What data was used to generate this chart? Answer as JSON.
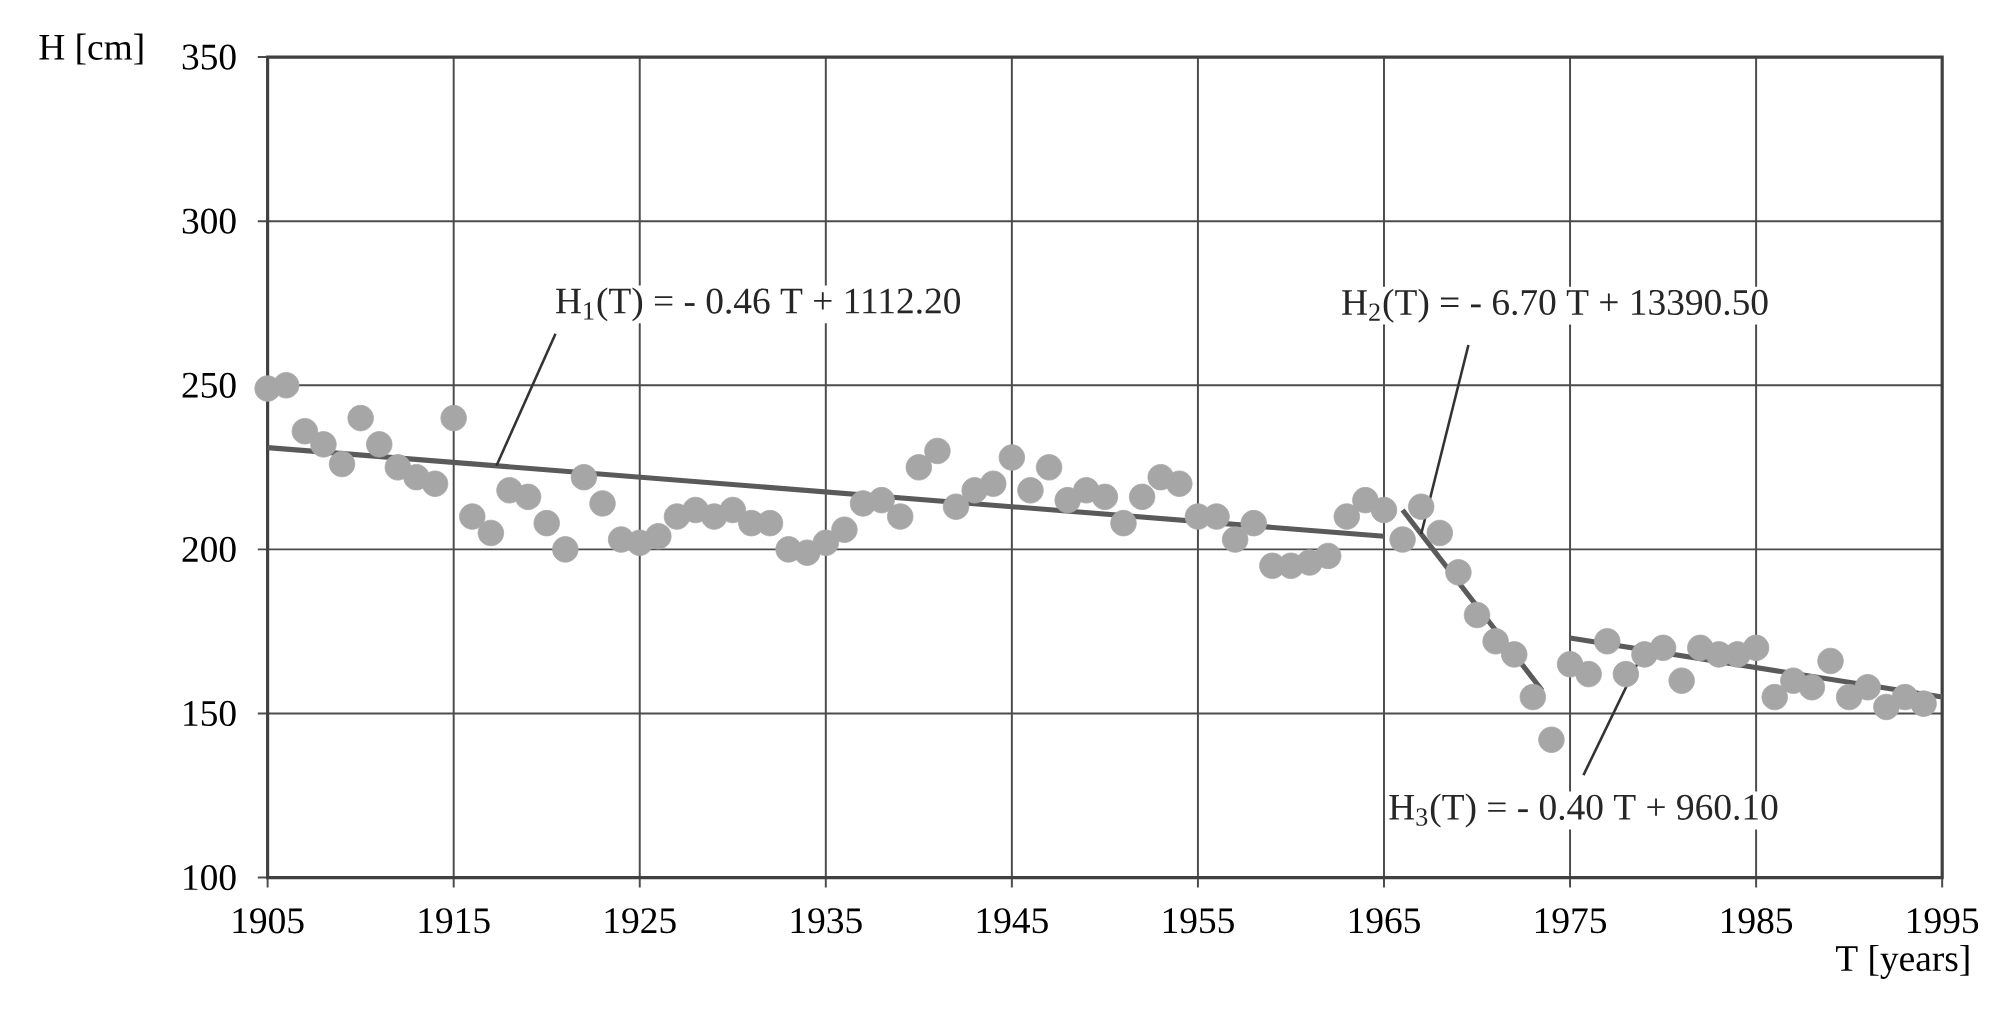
{
  "chart_data": {
    "type": "scatter",
    "xlabel": "T [years]",
    "ylabel": "H [cm]",
    "xlim": [
      1905,
      1995
    ],
    "xticks": [
      1905,
      1915,
      1925,
      1935,
      1945,
      1955,
      1965,
      1975,
      1985,
      1995
    ],
    "ylim": [
      100,
      350
    ],
    "yticks": [
      100,
      150,
      200,
      250,
      300,
      350
    ],
    "grid": true,
    "series": [
      {
        "marker": "circle",
        "color": "#a6a6a6",
        "x": [
          1905,
          1906,
          1907,
          1908,
          1909,
          1910,
          1911,
          1912,
          1913,
          1914,
          1915,
          1916,
          1917,
          1918,
          1919,
          1920,
          1921,
          1922,
          1923,
          1924,
          1925,
          1926,
          1927,
          1928,
          1929,
          1930,
          1931,
          1932,
          1933,
          1934,
          1935,
          1936,
          1937,
          1938,
          1939,
          1940,
          1941,
          1942,
          1943,
          1944,
          1945,
          1946,
          1947,
          1948,
          1949,
          1950,
          1951,
          1952,
          1953,
          1954,
          1955,
          1956,
          1957,
          1958,
          1959,
          1960,
          1961,
          1962,
          1963,
          1964,
          1965,
          1966,
          1967,
          1968,
          1969,
          1970,
          1971,
          1972,
          1973,
          1974,
          1975,
          1976,
          1977,
          1978,
          1979,
          1980,
          1981,
          1982,
          1983,
          1984,
          1985,
          1986,
          1987,
          1988,
          1989,
          1990,
          1991,
          1992,
          1993,
          1994
        ],
        "values": [
          249,
          250,
          236,
          232,
          226,
          240,
          232,
          225,
          222,
          220,
          240,
          210,
          205,
          218,
          216,
          208,
          200,
          222,
          214,
          203,
          202,
          204,
          210,
          212,
          210,
          212,
          208,
          208,
          200,
          199,
          202,
          206,
          214,
          215,
          210,
          225,
          230,
          213,
          218,
          220,
          228,
          218,
          225,
          215,
          218,
          216,
          208,
          216,
          222,
          220,
          210,
          210,
          203,
          208,
          195,
          195,
          196,
          198,
          210,
          215,
          212,
          203,
          213,
          205,
          193,
          180,
          172,
          168,
          155,
          142,
          165,
          162,
          172,
          162,
          168,
          170,
          160,
          170,
          168,
          168,
          170,
          155,
          160,
          158,
          166,
          155,
          158,
          152,
          155,
          153
        ]
      },
      {
        "type": "line",
        "marker": "none",
        "color": "#5a5a5a",
        "x": [
          1905,
          1965
        ],
        "values": [
          231,
          204
        ]
      },
      {
        "type": "line",
        "marker": "none",
        "color": "#5a5a5a",
        "x": [
          1966,
          1973.5
        ],
        "values": [
          212,
          157
        ]
      },
      {
        "type": "line",
        "marker": "none",
        "color": "#5a5a5a",
        "x": [
          1975,
          1995
        ],
        "values": [
          173,
          155
        ]
      }
    ],
    "annotations": [
      {
        "text": "H$_{1}$(T) = - 0.46 T + 1112.20",
        "x": 1917.3,
        "y": 225.5
      },
      {
        "text": "H$_{2}$(T) = - 6.70 T + 13390.50",
        "x": 1967,
        "y": 204.7
      },
      {
        "text": "H$_{3}$(T) = - 0.40 T + 960.10",
        "x": 1979,
        "y": 169.6
      }
    ]
  }
}
